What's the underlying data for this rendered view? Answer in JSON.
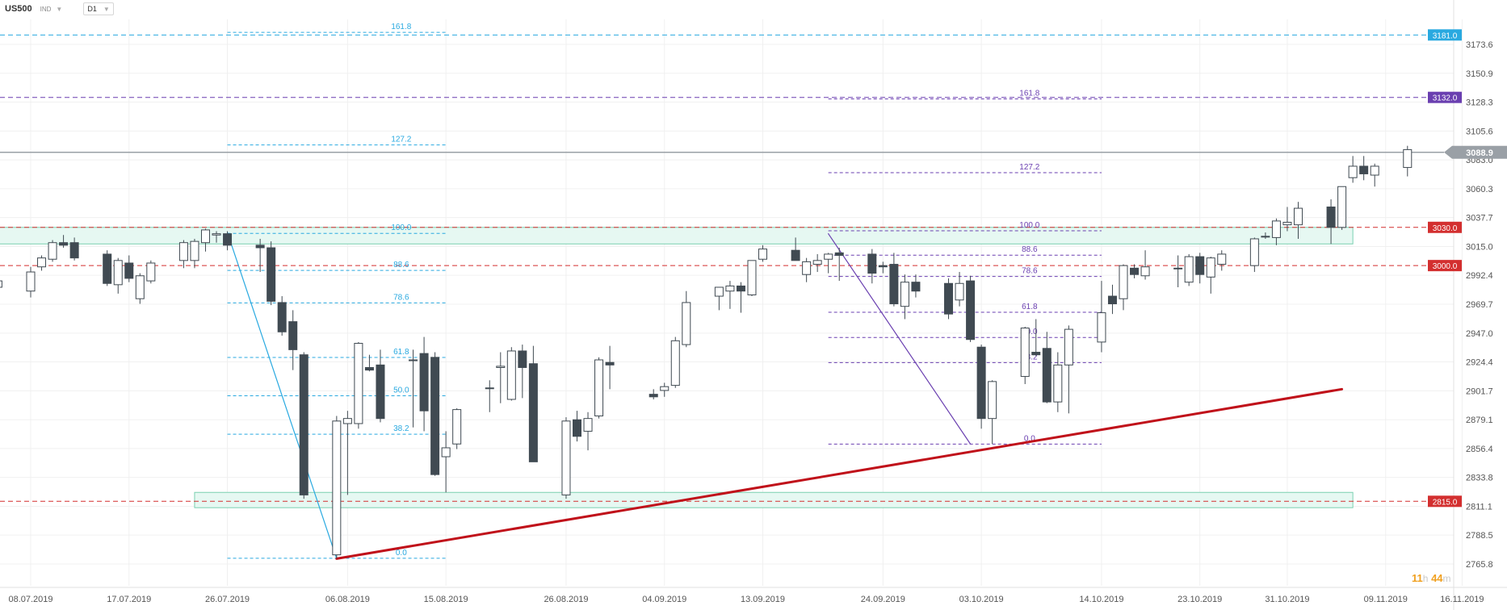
{
  "toolbar": {
    "symbol": "US500",
    "instrument_type": "IND",
    "timeframe": "D1",
    "dropdown_glyph": "▼"
  },
  "timer": {
    "hours": "11",
    "hours_unit": "h",
    "minutes": "44",
    "minutes_unit": "m"
  },
  "chart_data": {
    "type": "candlestick",
    "y_ticks": [
      "3173.6",
      "3150.9",
      "3128.3",
      "3105.6",
      "3083.0",
      "3060.3",
      "3037.7",
      "3015.0",
      "2992.4",
      "2969.7",
      "2947.0",
      "2924.4",
      "2901.7",
      "2879.1",
      "2856.4",
      "2833.8",
      "2811.1",
      "2788.5",
      "2765.8"
    ],
    "x_ticks": [
      {
        "label": "08.07.2019",
        "date": "2019-07-08"
      },
      {
        "label": "17.07.2019",
        "date": "2019-07-17"
      },
      {
        "label": "26.07.2019",
        "date": "2019-07-26"
      },
      {
        "label": "06.08.2019",
        "date": "2019-08-06"
      },
      {
        "label": "15.08.2019",
        "date": "2019-08-15"
      },
      {
        "label": "26.08.2019",
        "date": "2019-08-26"
      },
      {
        "label": "04.09.2019",
        "date": "2019-09-04"
      },
      {
        "label": "13.09.2019",
        "date": "2019-09-13"
      },
      {
        "label": "24.09.2019",
        "date": "2019-09-24"
      },
      {
        "label": "03.10.2019",
        "date": "2019-10-03"
      },
      {
        "label": "14.10.2019",
        "date": "2019-10-14"
      },
      {
        "label": "23.10.2019",
        "date": "2019-10-23"
      },
      {
        "label": "31.10.2019",
        "date": "2019-10-31"
      },
      {
        "label": "09.11.2019",
        "date": "2019-11-09"
      },
      {
        "label": "16.11.2019",
        "date": "2019-11-16"
      }
    ],
    "last_price": {
      "value": 3088.9,
      "label": "3088.9"
    },
    "horizontal_levels": [
      {
        "value": 3181.0,
        "label": "3181.0",
        "color": "#29a9e0",
        "style": "dashed"
      },
      {
        "value": 3132.0,
        "label": "3132.0",
        "color": "#6a3fb0",
        "style": "dashed"
      },
      {
        "value": 3030.0,
        "label": "3030.0",
        "color": "#d32f2f",
        "style": "dashed"
      },
      {
        "value": 3000.0,
        "label": "3000.0",
        "color": "#d32f2f",
        "style": "dashed"
      },
      {
        "value": 2815.0,
        "label": "2815.0",
        "color": "#d32f2f",
        "style": "dashed"
      }
    ],
    "zones": [
      {
        "from_date": "2019-07-01",
        "to_date": "2019-11-06",
        "top": 3030,
        "bottom": 3017
      },
      {
        "from_date": "2019-07-23",
        "to_date": "2019-11-06",
        "top": 2822,
        "bottom": 2810
      }
    ],
    "fib_sets": [
      {
        "color": "#29a9e0",
        "from_date": "2019-07-26",
        "to_date": "2019-08-15",
        "levels": [
          {
            "label": "161.8",
            "value": 3183.0
          },
          {
            "label": "127.2",
            "value": 3094.7
          },
          {
            "label": "100.0",
            "value": 3025.3
          },
          {
            "label": "88.6",
            "value": 2996.2
          },
          {
            "label": "78.6",
            "value": 2970.7
          },
          {
            "label": "61.8",
            "value": 2927.9
          },
          {
            "label": "50.0",
            "value": 2897.8
          },
          {
            "label": "38.2",
            "value": 2867.7
          },
          {
            "label": "0.0",
            "value": 2770.3
          }
        ]
      },
      {
        "color": "#6a3fb0",
        "from_date": "2019-09-19",
        "to_date": "2019-10-14",
        "levels": [
          {
            "label": "161.8",
            "value": 3130.8
          },
          {
            "label": "127.2",
            "value": 3072.9
          },
          {
            "label": "100.0",
            "value": 3027.3
          },
          {
            "label": "88.6",
            "value": 3008.2
          },
          {
            "label": "78.6",
            "value": 2991.5
          },
          {
            "label": "61.8",
            "value": 2963.4
          },
          {
            "label": "50.0",
            "value": 2943.6
          },
          {
            "label": "38.2",
            "value": 2923.9
          },
          {
            "label": "0.0",
            "value": 2859.9
          }
        ]
      }
    ],
    "lines": [
      {
        "name": "fib-swing-1",
        "color": "#29a9e0",
        "width": 1.2,
        "from": {
          "date": "2019-07-26",
          "value": 3026
        },
        "to": {
          "date": "2019-08-05",
          "value": 2770
        }
      },
      {
        "name": "fib-swing-2",
        "color": "#6a3fb0",
        "width": 1.2,
        "from": {
          "date": "2019-09-19",
          "value": 3025
        },
        "to": {
          "date": "2019-10-02",
          "value": 2860
        }
      },
      {
        "name": "uptrend-line",
        "color": "#c0111a",
        "width": 3,
        "from": {
          "date": "2019-08-05",
          "value": 2770
        },
        "to": {
          "date": "2019-11-05",
          "value": 2903
        }
      }
    ],
    "candles": [
      {
        "date": "2019-07-03",
        "o": 2993,
        "h": 2996,
        "l": 2979,
        "c": 2980
      },
      {
        "date": "2019-07-05",
        "o": 2983,
        "h": 2989,
        "l": 2969,
        "c": 2988
      },
      {
        "date": "2019-07-08",
        "o": 2980,
        "h": 2999,
        "l": 2975,
        "c": 2995
      },
      {
        "date": "2019-07-09",
        "o": 2999,
        "h": 3008,
        "l": 2996,
        "c": 3006
      },
      {
        "date": "2019-07-10",
        "o": 3005,
        "h": 3020,
        "l": 3003,
        "c": 3018
      },
      {
        "date": "2019-07-11",
        "o": 3018,
        "h": 3024,
        "l": 3014,
        "c": 3016
      },
      {
        "date": "2019-07-12",
        "o": 3018,
        "h": 3022,
        "l": 3004,
        "c": 3006
      },
      {
        "date": "2019-07-15",
        "o": 3009,
        "h": 3012,
        "l": 2984,
        "c": 2986
      },
      {
        "date": "2019-07-16",
        "o": 2985,
        "h": 3006,
        "l": 2978,
        "c": 3004
      },
      {
        "date": "2019-07-17",
        "o": 3002,
        "h": 3008,
        "l": 2987,
        "c": 2990
      },
      {
        "date": "2019-07-18",
        "o": 2974,
        "h": 2994,
        "l": 2970,
        "c": 2992
      },
      {
        "date": "2019-07-19",
        "o": 2988,
        "h": 3004,
        "l": 2986,
        "c": 3002
      },
      {
        "date": "2019-07-22",
        "o": 3004,
        "h": 3020,
        "l": 2998,
        "c": 3018
      },
      {
        "date": "2019-07-23",
        "o": 3004,
        "h": 3021,
        "l": 2998,
        "c": 3019
      },
      {
        "date": "2019-07-24",
        "o": 3018,
        "h": 3029,
        "l": 3011,
        "c": 3028
      },
      {
        "date": "2019-07-25",
        "o": 3024,
        "h": 3027,
        "l": 3018,
        "c": 3025
      },
      {
        "date": "2019-07-26",
        "o": 3025,
        "h": 3027,
        "l": 3012,
        "c": 3016
      },
      {
        "date": "2019-07-29",
        "o": 3016,
        "h": 3021,
        "l": 2995,
        "c": 3014
      },
      {
        "date": "2019-07-30",
        "o": 3014,
        "h": 3019,
        "l": 2969,
        "c": 2972
      },
      {
        "date": "2019-07-31",
        "o": 2971,
        "h": 2976,
        "l": 2945,
        "c": 2948
      },
      {
        "date": "2019-08-01",
        "o": 2956,
        "h": 2965,
        "l": 2918,
        "c": 2934
      },
      {
        "date": "2019-08-02",
        "o": 2930,
        "h": 2932,
        "l": 2817,
        "c": 2820
      },
      {
        "date": "2019-08-05",
        "o": 2773,
        "h": 2882,
        "l": 2770,
        "c": 2878
      },
      {
        "date": "2019-08-06",
        "o": 2876,
        "h": 2886,
        "l": 2820,
        "c": 2880
      },
      {
        "date": "2019-08-07",
        "o": 2876,
        "h": 2940,
        "l": 2872,
        "c": 2939
      },
      {
        "date": "2019-08-08",
        "o": 2920,
        "h": 2930,
        "l": 2917,
        "c": 2918
      },
      {
        "date": "2019-08-09",
        "o": 2922,
        "h": 2934,
        "l": 2877,
        "c": 2880
      },
      {
        "date": "2019-08-12",
        "o": 2926,
        "h": 2934,
        "l": 2873,
        "c": 2926
      },
      {
        "date": "2019-08-13",
        "o": 2931,
        "h": 2944,
        "l": 2870,
        "c": 2886
      },
      {
        "date": "2019-08-14",
        "o": 2928,
        "h": 2932,
        "l": 2835,
        "c": 2836
      },
      {
        "date": "2019-08-15",
        "o": 2850,
        "h": 2870,
        "l": 2822,
        "c": 2857
      },
      {
        "date": "2019-08-16",
        "o": 2860,
        "h": 2888,
        "l": 2856,
        "c": 2887
      },
      {
        "date": "2019-08-19",
        "o": 2904,
        "h": 2910,
        "l": 2885,
        "c": 2904
      },
      {
        "date": "2019-08-20",
        "o": 2920,
        "h": 2932,
        "l": 2892,
        "c": 2921
      },
      {
        "date": "2019-08-21",
        "o": 2895,
        "h": 2936,
        "l": 2894,
        "c": 2933
      },
      {
        "date": "2019-08-22",
        "o": 2933,
        "h": 2938,
        "l": 2896,
        "c": 2920
      },
      {
        "date": "2019-08-23",
        "o": 2923,
        "h": 2937,
        "l": 2847,
        "c": 2846
      },
      {
        "date": "2019-08-26",
        "o": 2820,
        "h": 2881,
        "l": 2817,
        "c": 2878
      },
      {
        "date": "2019-08-27",
        "o": 2879,
        "h": 2886,
        "l": 2862,
        "c": 2866
      },
      {
        "date": "2019-08-28",
        "o": 2870,
        "h": 2885,
        "l": 2855,
        "c": 2880
      },
      {
        "date": "2019-08-29",
        "o": 2882,
        "h": 2928,
        "l": 2880,
        "c": 2926
      },
      {
        "date": "2019-08-30",
        "o": 2924,
        "h": 2937,
        "l": 2903,
        "c": 2922
      },
      {
        "date": "2019-09-03",
        "o": 2899,
        "h": 2903,
        "l": 2895,
        "c": 2897
      },
      {
        "date": "2019-09-04",
        "o": 2902,
        "h": 2908,
        "l": 2897,
        "c": 2905
      },
      {
        "date": "2019-09-05",
        "o": 2906,
        "h": 2944,
        "l": 2904,
        "c": 2941
      },
      {
        "date": "2019-09-06",
        "o": 2938,
        "h": 2980,
        "l": 2936,
        "c": 2971
      },
      {
        "date": "2019-09-09",
        "o": 2976,
        "h": 2983,
        "l": 2965,
        "c": 2983
      },
      {
        "date": "2019-09-10",
        "o": 2980,
        "h": 2988,
        "l": 2966,
        "c": 2984
      },
      {
        "date": "2019-09-11",
        "o": 2984,
        "h": 2987,
        "l": 2963,
        "c": 2980
      },
      {
        "date": "2019-09-12",
        "o": 2977,
        "h": 3004,
        "l": 2976,
        "c": 3004
      },
      {
        "date": "2019-09-13",
        "o": 3005,
        "h": 3016,
        "l": 3003,
        "c": 3013
      },
      {
        "date": "2019-09-16",
        "o": 3012,
        "h": 3022,
        "l": 3004,
        "c": 3004
      },
      {
        "date": "2019-09-17",
        "o": 2993,
        "h": 3006,
        "l": 2987,
        "c": 3003
      },
      {
        "date": "2019-09-18",
        "o": 3001,
        "h": 3009,
        "l": 2995,
        "c": 3004
      },
      {
        "date": "2019-09-19",
        "o": 3005,
        "h": 3010,
        "l": 2994,
        "c": 3009
      },
      {
        "date": "2019-09-20",
        "o": 3010,
        "h": 3014,
        "l": 2988,
        "c": 3008
      },
      {
        "date": "2019-09-23",
        "o": 3009,
        "h": 3013,
        "l": 2986,
        "c": 2994
      },
      {
        "date": "2019-09-24",
        "o": 3000,
        "h": 3003,
        "l": 2994,
        "c": 2999
      },
      {
        "date": "2019-09-25",
        "o": 3001,
        "h": 3010,
        "l": 2968,
        "c": 2970
      },
      {
        "date": "2019-09-26",
        "o": 2968,
        "h": 2993,
        "l": 2958,
        "c": 2987
      },
      {
        "date": "2019-09-27",
        "o": 2987,
        "h": 2993,
        "l": 2975,
        "c": 2980
      },
      {
        "date": "2019-09-30",
        "o": 2986,
        "h": 2990,
        "l": 2958,
        "c": 2962
      },
      {
        "date": "2019-10-01",
        "o": 2973,
        "h": 2995,
        "l": 2968,
        "c": 2986
      },
      {
        "date": "2019-10-02",
        "o": 2988,
        "h": 2992,
        "l": 2940,
        "c": 2942
      },
      {
        "date": "2019-10-03",
        "o": 2936,
        "h": 2938,
        "l": 2872,
        "c": 2880
      },
      {
        "date": "2019-10-04",
        "o": 2880,
        "h": 2910,
        "l": 2860,
        "c": 2909
      },
      {
        "date": "2019-10-07",
        "o": 2913,
        "h": 2952,
        "l": 2907,
        "c": 2951
      },
      {
        "date": "2019-10-08",
        "o": 2932,
        "h": 2958,
        "l": 2929,
        "c": 2930
      },
      {
        "date": "2019-10-09",
        "o": 2935,
        "h": 2948,
        "l": 2892,
        "c": 2893
      },
      {
        "date": "2019-10-10",
        "o": 2893,
        "h": 2932,
        "l": 2885,
        "c": 2922
      },
      {
        "date": "2019-10-11",
        "o": 2922,
        "h": 2953,
        "l": 2884,
        "c": 2950
      },
      {
        "date": "2019-10-14",
        "o": 2940,
        "h": 2988,
        "l": 2932,
        "c": 2963
      },
      {
        "date": "2019-10-15",
        "o": 2976,
        "h": 2985,
        "l": 2962,
        "c": 2970
      },
      {
        "date": "2019-10-16",
        "o": 2974,
        "h": 3001,
        "l": 2965,
        "c": 3000
      },
      {
        "date": "2019-10-17",
        "o": 2998,
        "h": 3001,
        "l": 2990,
        "c": 2993
      },
      {
        "date": "2019-10-18",
        "o": 2992,
        "h": 3012,
        "l": 2989,
        "c": 2999
      },
      {
        "date": "2019-10-21",
        "o": 2998,
        "h": 3008,
        "l": 2983,
        "c": 2998
      },
      {
        "date": "2019-10-22",
        "o": 2987,
        "h": 3009,
        "l": 2984,
        "c": 3007
      },
      {
        "date": "2019-10-23",
        "o": 3007,
        "h": 3010,
        "l": 2986,
        "c": 2993
      },
      {
        "date": "2019-10-24",
        "o": 2991,
        "h": 3007,
        "l": 2978,
        "c": 3006
      },
      {
        "date": "2019-10-25",
        "o": 3001,
        "h": 3012,
        "l": 2996,
        "c": 3009
      },
      {
        "date": "2019-10-28",
        "o": 3000,
        "h": 3022,
        "l": 2995,
        "c": 3021
      },
      {
        "date": "2019-10-29",
        "o": 3023,
        "h": 3026,
        "l": 3021,
        "c": 3023
      },
      {
        "date": "2019-10-30",
        "o": 3022,
        "h": 3037,
        "l": 3016,
        "c": 3035
      },
      {
        "date": "2019-10-31",
        "o": 3032,
        "h": 3046,
        "l": 3027,
        "c": 3034
      },
      {
        "date": "2019-11-01",
        "o": 3032,
        "h": 3050,
        "l": 3021,
        "c": 3045
      },
      {
        "date": "2019-11-04",
        "o": 3046,
        "h": 3052,
        "l": 3017,
        "c": 3030
      },
      {
        "date": "2019-11-05",
        "o": 3030,
        "h": 3062,
        "l": 3028,
        "c": 3062
      },
      {
        "date": "2019-11-06",
        "o": 3069,
        "h": 3086,
        "l": 3065,
        "c": 3078
      },
      {
        "date": "2019-11-07",
        "o": 3078,
        "h": 3086,
        "l": 3067,
        "c": 3072
      },
      {
        "date": "2019-11-08",
        "o": 3071,
        "h": 3080,
        "l": 3062,
        "c": 3078
      },
      {
        "date": "2019-11-11",
        "o": 3077,
        "h": 3094,
        "l": 3070,
        "c": 3091
      }
    ],
    "colors": {
      "up": "#ffffff",
      "down": "#404a52",
      "wick": "#404a52",
      "grid": "#f0f0f0",
      "zone_fill": "#e6f8f2",
      "zone_border": "#7ad0b0",
      "last_price_line": "#9aa0a6",
      "last_price_tag": "#9aa0a6"
    }
  }
}
